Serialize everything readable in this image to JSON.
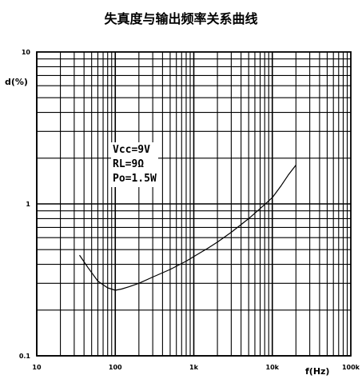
{
  "chart_data": {
    "type": "line",
    "title": "失真度与输出频率关系曲线",
    "ylabel": "d(%)",
    "xlabel": "f(Hz)",
    "x_scale": "log",
    "y_scale": "log",
    "xlim": [
      10,
      100000
    ],
    "ylim": [
      0.1,
      10
    ],
    "x_tick_labels": [
      {
        "value": 10,
        "label": "10"
      },
      {
        "value": 100,
        "label": "100"
      },
      {
        "value": 1000,
        "label": "1k"
      },
      {
        "value": 10000,
        "label": "10k"
      },
      {
        "value": 100000,
        "label": "100k"
      }
    ],
    "y_tick_labels": [
      {
        "value": 10,
        "label": "10"
      },
      {
        "value": 1,
        "label": "1"
      },
      {
        "value": 0.1,
        "label": "0.1"
      }
    ],
    "grid": true,
    "annotations": [
      "Vcc=9V",
      "RL=9Ω",
      "Po=1.5W"
    ],
    "series": [
      {
        "x": [
          35,
          45,
          60,
          80,
          100,
          120,
          150,
          200,
          300,
          500,
          800,
          1000,
          1500,
          2000,
          3000,
          5000,
          8000,
          10000,
          13000,
          16000,
          20000
        ],
        "y": [
          0.46,
          0.38,
          0.31,
          0.28,
          0.27,
          0.275,
          0.285,
          0.3,
          0.33,
          0.37,
          0.42,
          0.45,
          0.51,
          0.56,
          0.65,
          0.8,
          0.99,
          1.1,
          1.32,
          1.55,
          1.8
        ]
      }
    ]
  }
}
